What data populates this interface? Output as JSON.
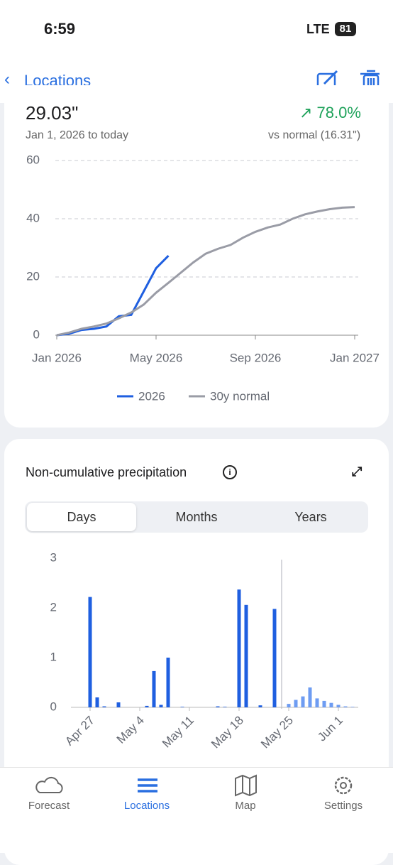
{
  "status_bar": {
    "time": "6:59",
    "network": "LTE",
    "battery": "81"
  },
  "nav": {
    "back_label": "Locations"
  },
  "summary": {
    "total": "29.03\"",
    "change": "78.0%",
    "period": "Jan 1, 2026 to today",
    "comparison": "vs normal (16.31\")"
  },
  "chart_data": [
    {
      "type": "line",
      "categories": [
        "Jan 2026",
        null,
        null,
        null,
        null,
        null,
        null,
        null,
        "May 2026",
        null,
        null,
        null,
        null,
        null,
        null,
        null,
        "Sep 2026",
        null,
        null,
        null,
        null,
        null,
        null,
        null,
        "Jan 2027"
      ],
      "series": [
        {
          "name": "2026",
          "color": "#1f5fe0",
          "values": [
            0,
            0.5,
            1.8,
            2.2,
            3,
            6.5,
            7,
            15,
            23,
            27.3,
            null,
            null,
            null,
            null,
            null,
            null,
            null,
            null,
            null,
            null,
            null,
            null,
            null,
            null,
            null
          ]
        },
        {
          "name": "30y normal",
          "color": "#9a9ca6",
          "values": [
            0,
            0.9,
            2.2,
            3,
            4,
            5.8,
            7.8,
            10.5,
            14.6,
            18,
            21.5,
            25,
            28,
            29.7,
            31,
            33.5,
            35.5,
            37,
            38,
            40,
            41.5,
            42.5,
            43.3,
            43.8,
            44
          ]
        }
      ],
      "ylim": [
        0,
        60
      ],
      "yticks": [
        0,
        20,
        40,
        60
      ],
      "grid": true,
      "legend": "bottom"
    },
    {
      "type": "bar",
      "title": "Non-cumulative precipitation",
      "categories": [
        null,
        null,
        "Apr 27",
        null,
        null,
        null,
        null,
        null,
        null,
        "May 4",
        null,
        null,
        null,
        null,
        null,
        null,
        "May 11",
        null,
        null,
        null,
        null,
        null,
        null,
        "May 18",
        null,
        null,
        null,
        null,
        null,
        null,
        "May 25",
        null,
        null,
        null,
        null,
        null,
        null,
        "Jun 1",
        null,
        null,
        null
      ],
      "values": [
        0,
        0,
        2.22,
        0.2,
        0.02,
        0,
        0.1,
        0,
        0,
        0,
        0.03,
        0.73,
        0.05,
        1.0,
        0,
        0.01,
        0,
        0,
        0,
        0,
        0.02,
        0.01,
        0,
        2.37,
        2.06,
        0,
        0.04,
        0,
        1.98,
        0,
        0.07,
        0.15,
        0.22,
        0.4,
        0.18,
        0.13,
        0.09,
        0.05,
        0.02,
        0.01,
        0
      ],
      "colors": [
        "#1f5fe0",
        "#1f5fe0",
        "#1f5fe0",
        "#1f5fe0",
        "#1f5fe0",
        "#1f5fe0",
        "#1f5fe0",
        "#1f5fe0",
        "#1f5fe0",
        "#1f5fe0",
        "#1f5fe0",
        "#1f5fe0",
        "#1f5fe0",
        "#1f5fe0",
        "#1f5fe0",
        "#1f5fe0",
        "#1f5fe0",
        "#1f5fe0",
        "#1f5fe0",
        "#1f5fe0",
        "#1f5fe0",
        "#1f5fe0",
        "#1f5fe0",
        "#1f5fe0",
        "#1f5fe0",
        "#1f5fe0",
        "#1f5fe0",
        "#1f5fe0",
        "#1f5fe0",
        "#1f5fe0",
        "#6e9cf2",
        "#6e9cf2",
        "#6e9cf2",
        "#6e9cf2",
        "#6e9cf2",
        "#6e9cf2",
        "#6e9cf2",
        "#6e9cf2",
        "#6e9cf2",
        "#6e9cf2",
        "#6e9cf2"
      ],
      "ylim": [
        0,
        3
      ],
      "yticks": [
        0,
        1,
        2,
        3
      ],
      "grid": false
    }
  ],
  "tabs": [
    "Days",
    "Months",
    "Years"
  ],
  "tab_bar": [
    "Forecast",
    "Locations",
    "Map",
    "Settings"
  ]
}
